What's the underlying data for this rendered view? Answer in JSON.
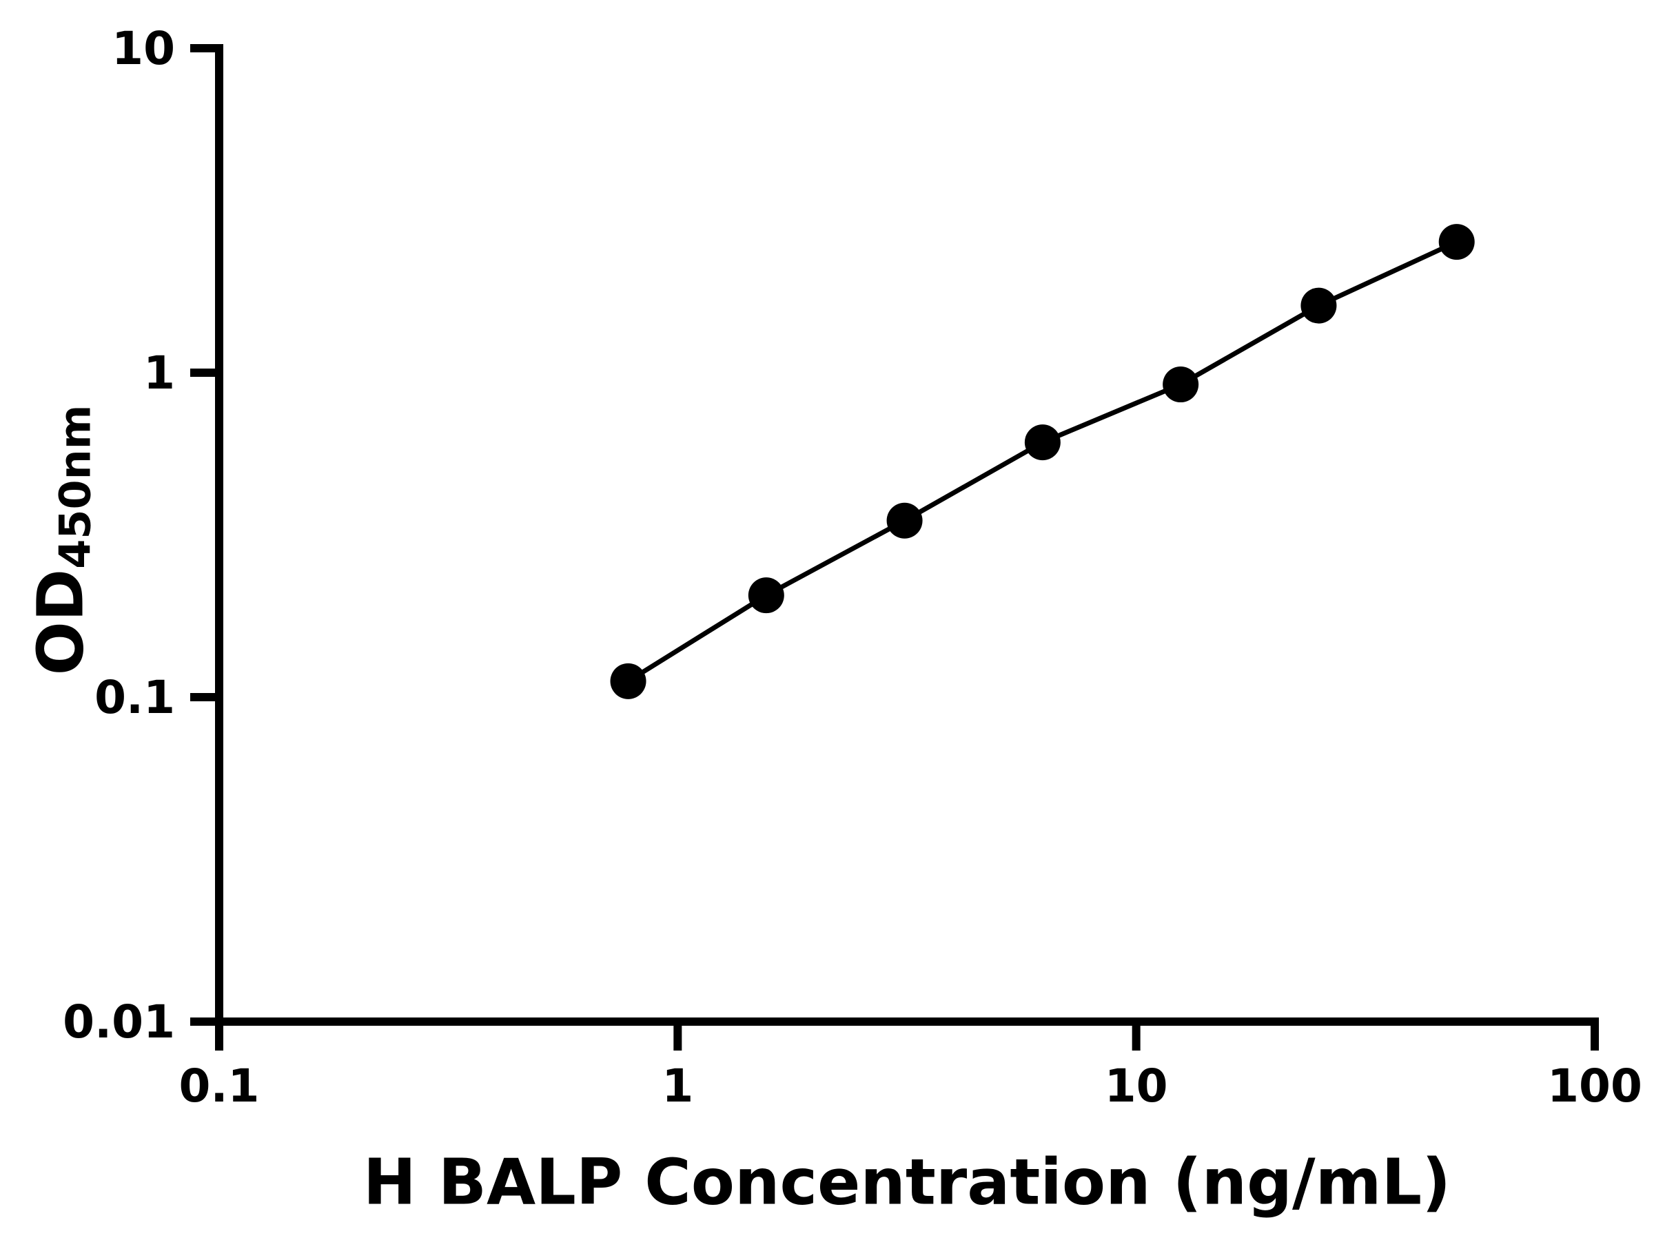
{
  "chart_data": {
    "type": "scatter",
    "title": "",
    "xlabel": "H BALP Concentration (ng/mL)",
    "ylabel_main": "OD",
    "ylabel_sub": "450nm",
    "x_scale": "log",
    "y_scale": "log",
    "xlim": [
      0.1,
      100
    ],
    "ylim": [
      0.01,
      10
    ],
    "x": [
      0.78,
      1.56,
      3.125,
      6.25,
      12.5,
      25,
      50
    ],
    "y": [
      0.112,
      0.206,
      0.35,
      0.61,
      0.92,
      1.61,
      2.53
    ],
    "x_ticks": [
      {
        "value": 0.1,
        "label": "0.1"
      },
      {
        "value": 1,
        "label": "1"
      },
      {
        "value": 10,
        "label": "10"
      },
      {
        "value": 100,
        "label": "100"
      }
    ],
    "y_ticks": [
      {
        "value": 0.01,
        "label": "0.01"
      },
      {
        "value": 0.1,
        "label": "0.1"
      },
      {
        "value": 1,
        "label": "1"
      },
      {
        "value": 10,
        "label": "10"
      }
    ],
    "marker_color": "#000000",
    "line_color": "#000000",
    "axis_color": "#000000",
    "background": "#ffffff",
    "grid": "off",
    "legend": "none",
    "marker_shape": "circle",
    "line_style": "solid"
  }
}
